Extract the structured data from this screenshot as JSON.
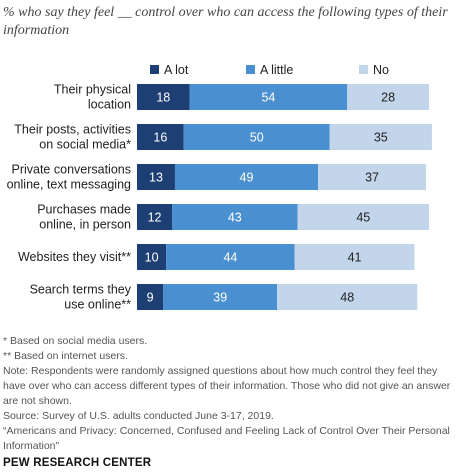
{
  "title": "% who say they feel __ control over who can access the following types of their information",
  "colors": {
    "a_lot": "#1d3f73",
    "a_little": "#4a8fd0",
    "no": "#c3d5ea",
    "a_lot_text": "#ffffff",
    "a_little_text": "#ffffff",
    "no_text": "#222222"
  },
  "chart_data": {
    "type": "bar",
    "orientation": "horizontal",
    "stacked": true,
    "title": "% who say they feel __ control over who can access the following types of their information",
    "categories": [
      [
        "Their physical",
        "location"
      ],
      [
        "Their posts, activities",
        "on social media*"
      ],
      [
        "Private conversations",
        "online, text messaging"
      ],
      [
        "Purchases made",
        "online, in person"
      ],
      [
        "Websites they visit**"
      ],
      [
        "Search terms they",
        "use online**"
      ]
    ],
    "series": [
      {
        "name": "A lot",
        "values": [
          18,
          16,
          13,
          12,
          10,
          9
        ]
      },
      {
        "name": "A little",
        "values": [
          54,
          50,
          49,
          43,
          44,
          39
        ]
      },
      {
        "name": "No",
        "values": [
          28,
          35,
          37,
          45,
          41,
          48
        ]
      }
    ],
    "legend": "top",
    "grid": false
  },
  "footnotes": [
    "* Based on social media users.",
    "** Based on internet users.",
    "Note: Respondents were randomly assigned questions about how much control they feel they have over who can access different types of their information. Those who did not give an answer are not shown.",
    "Source: Survey of U.S. adults conducted June 3-17, 2019.",
    "“Americans and Privacy: Concerned, Confused and Feeling Lack of Control Over Their Personal Information”"
  ],
  "brand": "PEW RESEARCH CENTER"
}
